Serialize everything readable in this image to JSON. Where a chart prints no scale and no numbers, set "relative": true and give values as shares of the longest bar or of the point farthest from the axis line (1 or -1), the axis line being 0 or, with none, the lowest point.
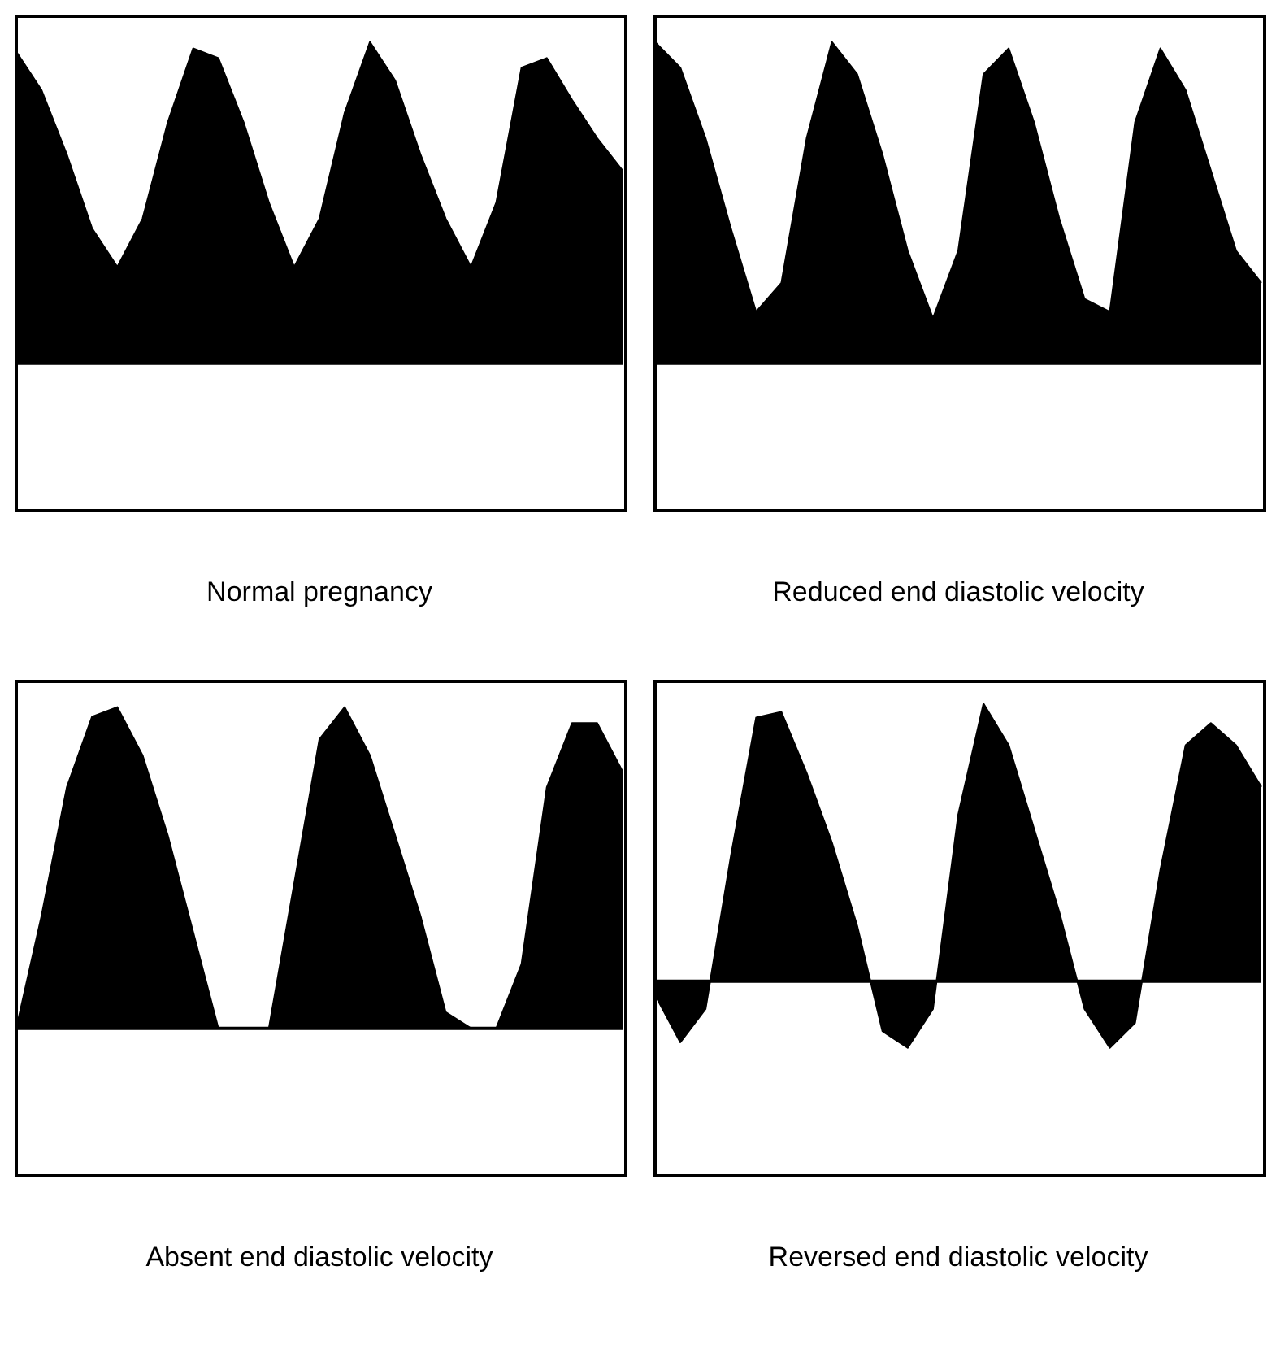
{
  "chart_data": [
    {
      "type": "area",
      "title": "Normal pregnancy",
      "relative": true,
      "legend": false,
      "marker": "none",
      "grid": false,
      "categories": [
        null,
        null,
        null,
        null,
        null,
        null,
        null,
        null,
        null,
        null,
        null,
        null,
        null,
        null,
        null,
        null,
        null,
        null,
        null,
        null,
        null,
        null,
        null,
        null,
        null
      ],
      "series": [
        {
          "color": "#000000",
          "values": [
            0.97,
            0.85,
            0.65,
            0.42,
            0.3,
            0.45,
            0.75,
            0.98,
            0.95,
            0.75,
            0.5,
            0.3,
            0.45,
            0.78,
            1.0,
            0.88,
            0.65,
            0.45,
            0.3,
            0.5,
            0.92,
            0.95,
            0.82,
            0.7,
            0.6
          ]
        }
      ]
    },
    {
      "type": "area",
      "title": "Reduced end diastolic velocity",
      "relative": true,
      "legend": false,
      "marker": "none",
      "grid": false,
      "categories": [
        null,
        null,
        null,
        null,
        null,
        null,
        null,
        null,
        null,
        null,
        null,
        null,
        null,
        null,
        null,
        null,
        null,
        null,
        null,
        null,
        null,
        null,
        null,
        null,
        null
      ],
      "series": [
        {
          "color": "#000000",
          "values": [
            1.0,
            0.92,
            0.7,
            0.42,
            0.16,
            0.25,
            0.7,
            1.0,
            0.9,
            0.65,
            0.35,
            0.14,
            0.35,
            0.9,
            0.98,
            0.75,
            0.45,
            0.2,
            0.16,
            0.75,
            0.98,
            0.85,
            0.6,
            0.35,
            0.25
          ]
        }
      ]
    },
    {
      "type": "area",
      "title": "Absent end diastolic velocity",
      "relative": true,
      "legend": false,
      "marker": "none",
      "grid": false,
      "categories": [
        null,
        null,
        null,
        null,
        null,
        null,
        null,
        null,
        null,
        null,
        null,
        null,
        null,
        null,
        null,
        null,
        null,
        null,
        null,
        null,
        null,
        null,
        null,
        null,
        null
      ],
      "series": [
        {
          "color": "#000000",
          "values": [
            0,
            0.35,
            0.75,
            0.97,
            1.0,
            0.85,
            0.6,
            0.3,
            0,
            0,
            0,
            0.45,
            0.9,
            1.0,
            0.85,
            0.6,
            0.35,
            0.05,
            0,
            0,
            0.2,
            0.75,
            0.95,
            0.95,
            0.8
          ]
        }
      ]
    },
    {
      "type": "area",
      "title": "Reversed end diastolic velocity",
      "relative": true,
      "legend": false,
      "marker": "none",
      "grid": false,
      "categories": [
        null,
        null,
        null,
        null,
        null,
        null,
        null,
        null,
        null,
        null,
        null,
        null,
        null,
        null,
        null,
        null,
        null,
        null,
        null,
        null,
        null,
        null,
        null,
        null,
        null
      ],
      "series": [
        {
          "color": "#000000",
          "values": [
            -0.05,
            -0.22,
            -0.1,
            0.45,
            0.95,
            0.97,
            0.75,
            0.5,
            0.2,
            -0.18,
            -0.24,
            -0.1,
            0.6,
            1.0,
            0.85,
            0.55,
            0.25,
            -0.1,
            -0.24,
            -0.15,
            0.4,
            0.85,
            0.93,
            0.85,
            0.7
          ]
        }
      ]
    }
  ]
}
